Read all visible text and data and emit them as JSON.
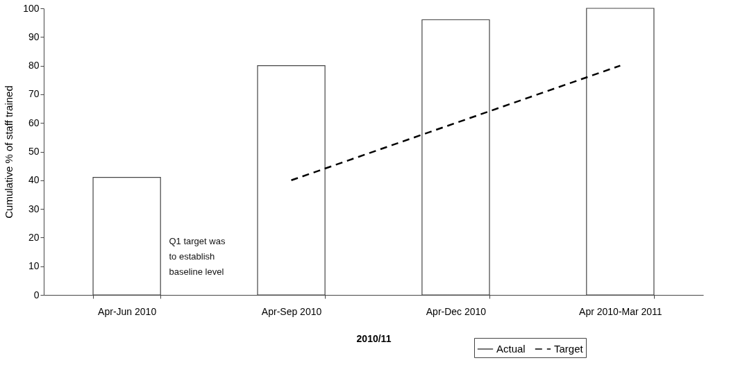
{
  "chart_data": {
    "type": "bar",
    "xlabel": "2010/11",
    "ylabel": "Cumulative % of staff trained",
    "categories": [
      "Apr-Jun 2010",
      "Apr-Sep 2010",
      "Apr-Dec 2010",
      "Apr 2010-Mar 2011"
    ],
    "series": [
      {
        "name": "Actual",
        "color": "#444444",
        "values": [
          41,
          80,
          96,
          100
        ]
      },
      {
        "name": "Target",
        "type": "line",
        "color": "#000000",
        "line_style": "dashed",
        "values": [
          null,
          40,
          60,
          80
        ]
      }
    ],
    "ylim": [
      0,
      100
    ],
    "yticks": [
      0,
      10,
      20,
      30,
      40,
      50,
      60,
      70,
      80,
      90,
      100
    ],
    "grid": false,
    "legend": "bottom right",
    "annotations": [
      "Q1 target was\nto establish\nbaseline level"
    ]
  }
}
